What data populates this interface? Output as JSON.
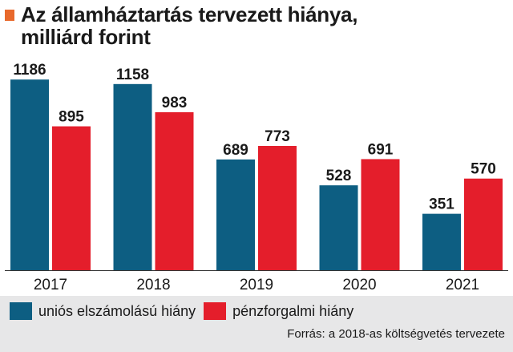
{
  "chart_data": {
    "type": "bar",
    "title": "Az államháztartás tervezett hiánya, milliárd forint",
    "title_lines": [
      "Az államháztartás tervezett hiánya,",
      "milliárd forint"
    ],
    "categories": [
      "2017",
      "2018",
      "2019",
      "2020",
      "2021"
    ],
    "series": [
      {
        "name": "uniós elszámolású hiány",
        "values": [
          1186,
          1158,
          689,
          528,
          351
        ],
        "color": "#0d5e82"
      },
      {
        "name": "pénzforgalmi hiány",
        "values": [
          895,
          983,
          773,
          691,
          570
        ],
        "color": "#e41e2b"
      }
    ],
    "ylim": [
      0,
      1300
    ],
    "grid": false,
    "legend_position": "bottom-left",
    "source": "Forrás: a 2018-as költségvetés tervezete"
  },
  "colors": {
    "accent": "#e8692c",
    "band": "#e7e7e8"
  }
}
